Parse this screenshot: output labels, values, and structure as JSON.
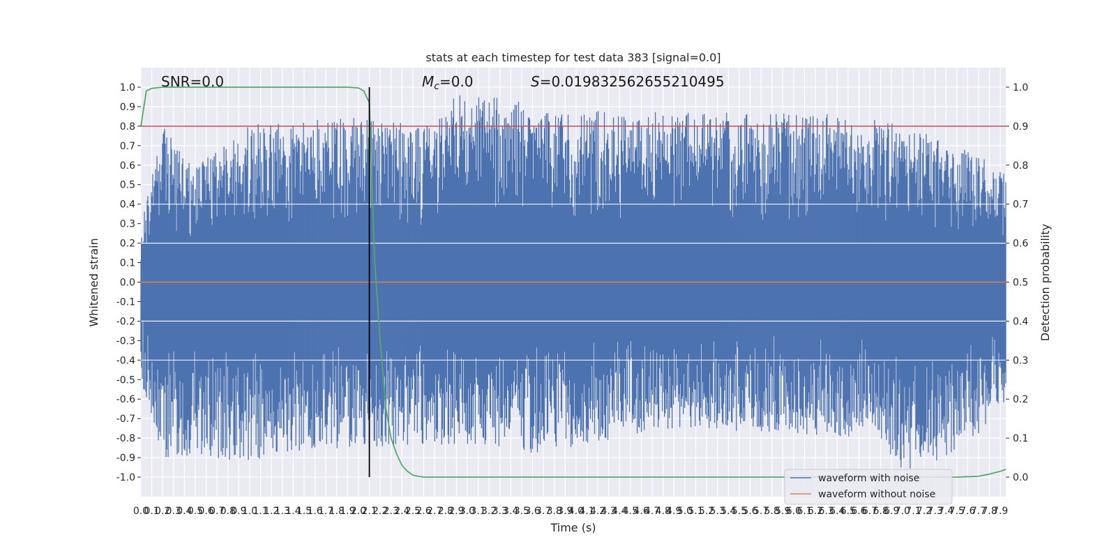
{
  "chart_data": {
    "type": "line",
    "title": "stats at each timestep for test data 383 [signal=0.0]",
    "xlabel": "Time (s)",
    "ylabel": "Whitened strain",
    "y2label": "Detection probability",
    "xlim": [
      0.0,
      7.95
    ],
    "ylim": [
      -1.1,
      1.1
    ],
    "y2lim": [
      -0.05,
      1.05
    ],
    "x_ticks": [
      "0.0",
      "0.1",
      "0.2",
      "0.3",
      "0.4",
      "0.5",
      "0.6",
      "0.7",
      "0.8",
      "0.9",
      "1.0",
      "1.1",
      "1.2",
      "1.3",
      "1.4",
      "1.5",
      "1.6",
      "1.7",
      "1.8",
      "1.9",
      "2.0",
      "2.1",
      "2.2",
      "2.3",
      "2.4",
      "2.5",
      "2.6",
      "2.7",
      "2.8",
      "2.9",
      "3.0",
      "3.1",
      "3.2",
      "3.3",
      "3.4",
      "3.5",
      "3.6",
      "3.7",
      "3.8",
      "3.9",
      "4.0",
      "4.1",
      "4.2",
      "4.3",
      "4.4",
      "4.5",
      "4.6",
      "4.7",
      "4.8",
      "4.9",
      "5.0",
      "5.1",
      "5.2",
      "5.3",
      "5.4",
      "5.5",
      "5.6",
      "5.7",
      "5.8",
      "5.9",
      "6.0",
      "6.1",
      "6.2",
      "6.3",
      "6.4",
      "6.5",
      "6.6",
      "6.7",
      "6.8",
      "6.9",
      "7.0",
      "7.1",
      "7.2",
      "7.3",
      "7.4",
      "7.5",
      "7.6",
      "7.7",
      "7.8",
      "7.9"
    ],
    "y_ticks": [
      "1.0",
      "0.9",
      "0.8",
      "0.7",
      "0.6",
      "0.5",
      "0.4",
      "0.3",
      "0.2",
      "0.1",
      "0.0",
      "-0.1",
      "-0.2",
      "-0.3",
      "-0.4",
      "-0.5",
      "-0.6",
      "-0.7",
      "-0.8",
      "-0.9",
      "-1.0"
    ],
    "y2_ticks": [
      "1.0",
      "0.9",
      "0.8",
      "0.7",
      "0.6",
      "0.5",
      "0.4",
      "0.3",
      "0.2",
      "0.1",
      "0.0"
    ],
    "annotations": {
      "snr": "SNR=0.0",
      "mc": "M",
      "mc_sub": "c",
      "mc_val": "=0.0",
      "s": "S",
      "s_val": "=0.019832562655210495"
    },
    "threshold": {
      "axis": "y2",
      "value": 0.9,
      "color": "#c44e52"
    },
    "marker_line": {
      "x": 2.1,
      "y_range": [
        -1.0,
        1.0
      ],
      "color": "#000000"
    },
    "series": [
      {
        "name": "waveform with noise",
        "axis": "y",
        "color": "#4c72b0",
        "description_envelope": {
          "upper": [
            [
              0.0,
              0.3
            ],
            [
              0.2,
              0.8
            ],
            [
              0.5,
              0.6
            ],
            [
              1.0,
              0.82
            ],
            [
              1.3,
              0.82
            ],
            [
              2.0,
              0.85
            ],
            [
              2.2,
              0.82
            ],
            [
              2.7,
              0.81
            ],
            [
              2.95,
              1.0
            ],
            [
              3.8,
              0.88
            ],
            [
              5.2,
              0.87
            ],
            [
              6.0,
              0.88
            ],
            [
              7.0,
              0.82
            ],
            [
              7.9,
              0.6
            ]
          ],
          "lower": [
            [
              0.0,
              -0.5
            ],
            [
              0.2,
              -0.9
            ],
            [
              1.0,
              -0.92
            ],
            [
              1.3,
              -0.87
            ],
            [
              3.0,
              -0.83
            ],
            [
              3.6,
              -0.88
            ],
            [
              5.0,
              -0.75
            ],
            [
              6.8,
              -0.8
            ],
            [
              7.0,
              -1.0
            ],
            [
              7.6,
              -0.84
            ],
            [
              7.9,
              -0.65
            ]
          ]
        }
      },
      {
        "name": "waveform without noise",
        "axis": "y",
        "color": "#dd8452",
        "x": [
          0.0,
          7.95
        ],
        "y": [
          0.0,
          0.0
        ]
      },
      {
        "axis": "y2",
        "color": "#55a868",
        "x": [
          0.0,
          0.05,
          0.1,
          0.2,
          0.5,
          1.0,
          1.5,
          1.9,
          2.0,
          2.05,
          2.1,
          2.15,
          2.2,
          2.25,
          2.3,
          2.35,
          2.4,
          2.45,
          2.5,
          2.55,
          2.6,
          2.7,
          3.0,
          4.0,
          5.0,
          6.0,
          7.0,
          7.5,
          7.7,
          7.8,
          7.9,
          7.95
        ],
        "y": [
          0.9,
          0.99,
          0.997,
          1.0,
          1.0,
          1.0,
          1.0,
          1.0,
          0.998,
          0.99,
          0.96,
          0.55,
          0.35,
          0.18,
          0.1,
          0.06,
          0.03,
          0.015,
          0.005,
          0.002,
          0.0,
          0.0,
          0.0,
          0.0,
          0.0,
          0.0,
          0.0,
          0.0,
          0.002,
          0.008,
          0.015,
          0.02
        ]
      }
    ],
    "legend": {
      "placement": "lower right",
      "entries": [
        {
          "label": "waveform with noise",
          "color": "#4c72b0"
        },
        {
          "label": "waveform without noise",
          "color": "#dd8452"
        }
      ]
    },
    "grid": true,
    "background": "#eaeaf2"
  }
}
